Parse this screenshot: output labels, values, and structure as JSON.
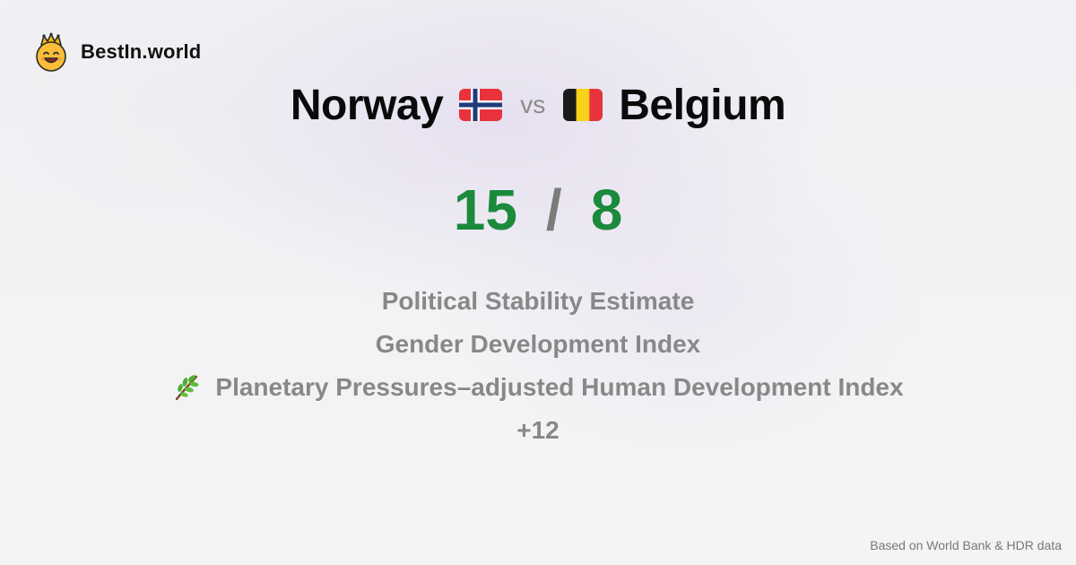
{
  "brand": {
    "name": "BestIn.world",
    "icon": "crowned-smiley-icon"
  },
  "comparison": {
    "country_a": {
      "name": "Norway",
      "flag": "norway-flag-icon"
    },
    "vs_label": "vs",
    "country_b": {
      "name": "Belgium",
      "flag": "belgium-flag-icon"
    }
  },
  "score": {
    "country_a": "15",
    "separator": "/",
    "country_b": "8",
    "color": "#1b8a3c"
  },
  "metrics": [
    {
      "label": "Political Stability Estimate",
      "icon": ""
    },
    {
      "label": "Gender Development Index",
      "icon": ""
    },
    {
      "label": "Planetary Pressures–adjusted Human Development Index",
      "icon": "herb-icon"
    }
  ],
  "more_label": "+12",
  "footer": {
    "source": "Based on World Bank & HDR data"
  }
}
